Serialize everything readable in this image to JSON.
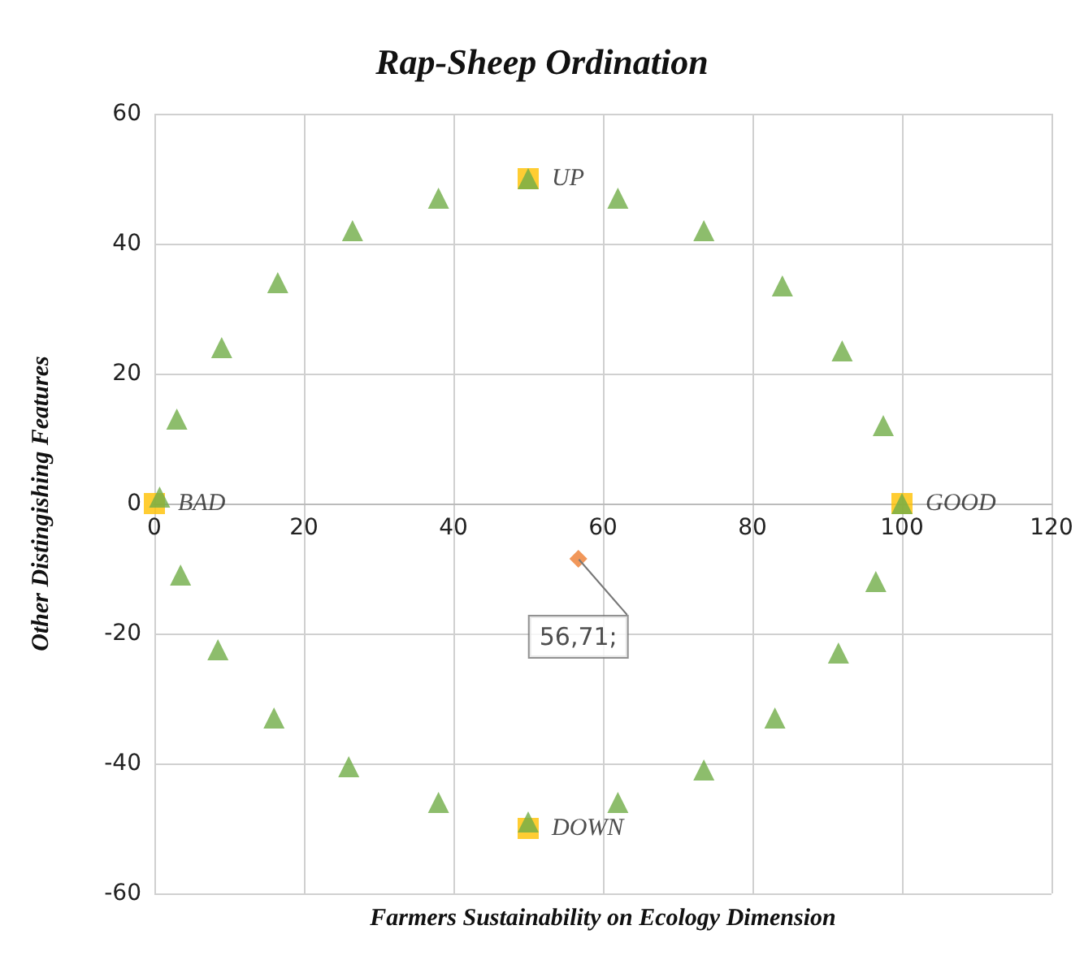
{
  "chart_data": {
    "type": "scatter",
    "title": "Rap-Sheep Ordination",
    "xlabel": "Farmers Sustainability on Ecology Dimension",
    "ylabel": "Other Distingishing Features",
    "xlim": [
      0,
      120
    ],
    "xticks": [
      0,
      20,
      40,
      60,
      80,
      100,
      120
    ],
    "ylim": [
      -60,
      60
    ],
    "yticks": [
      -60,
      -40,
      -20,
      0,
      20,
      40,
      60
    ],
    "grid": true,
    "annotations": [
      {
        "text": "56,71;",
        "x": 56.71,
        "y": -8.5
      }
    ],
    "series": [
      {
        "color": "#ffc000",
        "marker": "square",
        "x": [
          0,
          50,
          100,
          50
        ],
        "values": [
          0,
          50,
          0,
          -50
        ],
        "value_labels": [
          "BAD",
          "UP",
          "GOOD",
          "DOWN"
        ]
      },
      {
        "color": "#70ad47",
        "marker": "triangle",
        "x": [
          0.7,
          3,
          9,
          16.5,
          26.5,
          38,
          50,
          62,
          73.5,
          84,
          92,
          97.5,
          100,
          96.5,
          91.5,
          83,
          73.5,
          62,
          50,
          38,
          26,
          16,
          8.5,
          3.5
        ],
        "values": [
          1,
          13,
          24,
          34,
          42,
          47,
          50,
          47,
          42,
          33.5,
          23.5,
          12,
          0,
          -12,
          -23,
          -33,
          -41,
          -46,
          -49,
          -46,
          -40.5,
          -33,
          -22.5,
          -11
        ]
      },
      {
        "color": "#ed7d31",
        "marker": "diamond",
        "x": [
          56.71
        ],
        "values": [
          -8.5
        ]
      }
    ]
  }
}
